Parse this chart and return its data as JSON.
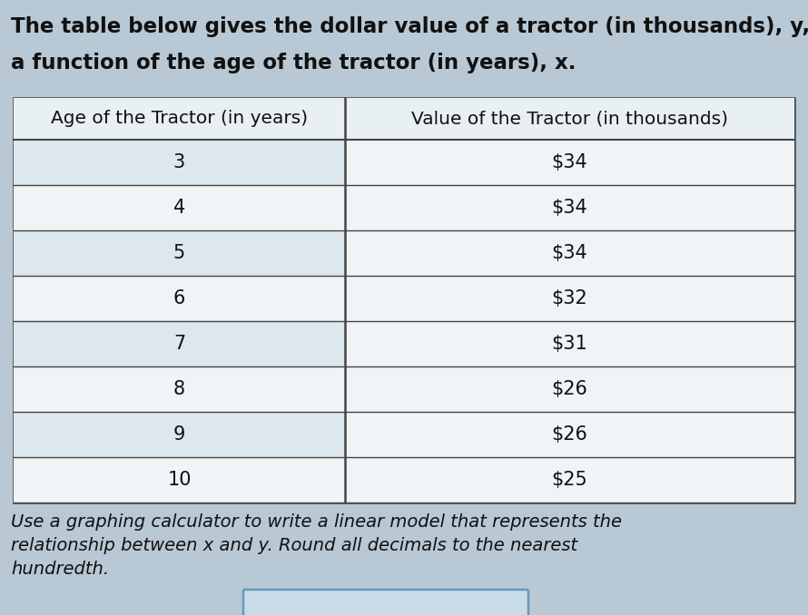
{
  "title_line1": "The table below gives the dollar value of a tractor (in thousands), y, as",
  "title_line2": "a function of the age of the tractor (in years), x.",
  "col1_header": "Age of the Tractor (in years)",
  "col2_header": "Value of the Tractor (in thousands)",
  "ages": [
    "3",
    "4",
    "5",
    "6",
    "7",
    "8",
    "9",
    "10"
  ],
  "values": [
    "$34",
    "$34",
    "$34",
    "$32",
    "$31",
    "$26",
    "$26",
    "$25"
  ],
  "footer_line1": "Use a graphing calculator to write a linear model that represents the",
  "footer_line2": "relationship between x and y. Round all decimals to the nearest",
  "footer_line3": "hundredth.",
  "bg_color": "#b8c8d4",
  "table_bg_white": "#f0f4f6",
  "table_bg_light": "#dce8ee",
  "header_row_color": "#e8f0f4",
  "border_color": "#444444",
  "text_color": "#111111",
  "title_fontsize": 16.5,
  "header_fontsize": 14.5,
  "cell_fontsize": 15,
  "footer_fontsize": 14,
  "input_box_color": "#c8dce8",
  "input_box_border": "#6699bb"
}
